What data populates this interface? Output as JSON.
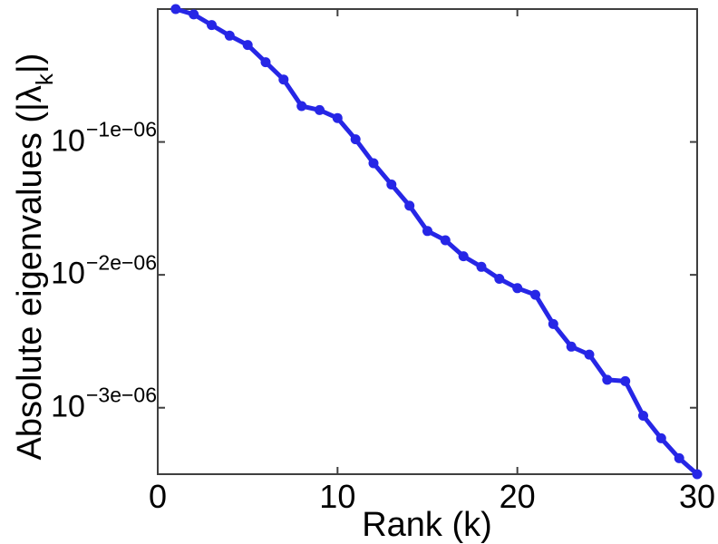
{
  "chart_data": {
    "type": "line",
    "title": "",
    "xlabel": "Rank (k)",
    "ylabel_prefix": "Absolute eigenvalues (|λ",
    "ylabel_sub": "k",
    "ylabel_suffix": "|)",
    "x": [
      1,
      2,
      3,
      4,
      5,
      6,
      7,
      8,
      9,
      10,
      11,
      12,
      13,
      14,
      15,
      16,
      17,
      18,
      19,
      20,
      21,
      22,
      23,
      24,
      25,
      26,
      27,
      28,
      29,
      30
    ],
    "y_exponent_1e06": [
      0.0,
      -0.04,
      -0.12,
      -0.2,
      -0.27,
      -0.4,
      -0.53,
      -0.73,
      -0.76,
      -0.82,
      -0.98,
      -1.16,
      -1.32,
      -1.48,
      -1.67,
      -1.74,
      -1.86,
      -1.94,
      -2.03,
      -2.1,
      -2.15,
      -2.37,
      -2.54,
      -2.6,
      -2.79,
      -2.8,
      -3.06,
      -3.23,
      -3.38,
      -3.5
    ],
    "y_scale": "log",
    "y_value_rule": "value = 10^(exponent × 1e-06)",
    "xlim": [
      0,
      30
    ],
    "ylim_exponent_1e06": [
      0,
      -3.5
    ],
    "x_ticks": [
      {
        "value": 0,
        "label": "0"
      },
      {
        "value": 10,
        "label": "10"
      },
      {
        "value": 20,
        "label": "20"
      },
      {
        "value": 30,
        "label": "30"
      }
    ],
    "y_ticks": [
      {
        "exponent_1e06": -1,
        "base": "10",
        "exp": "−1e−06"
      },
      {
        "exponent_1e06": -2,
        "base": "10",
        "exp": "−2e−06"
      },
      {
        "exponent_1e06": -3,
        "base": "10",
        "exp": "−3e−06"
      }
    ],
    "legend": null,
    "grid": false,
    "marker": "filled-circle",
    "line_color": "#2626e6",
    "axis_color": "#3f3f3f",
    "text_color": "#000000",
    "background_color": "#ffffff"
  }
}
